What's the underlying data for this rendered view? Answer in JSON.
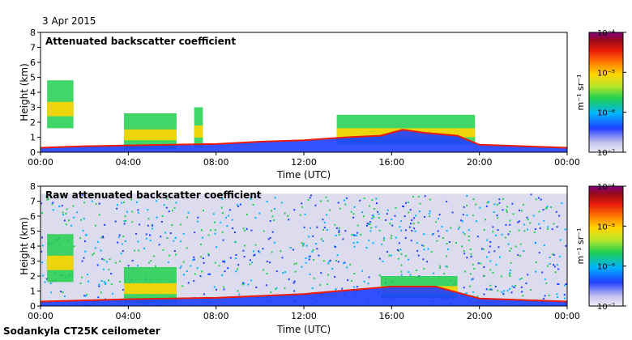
{
  "date": "3 Apr 2015",
  "caption": "Sodankyla CT25K ceilometer",
  "colorbar_unit": "m⁻¹ sr⁻¹",
  "colors": {
    "background": "#ffffff",
    "plot_background": "#ffffff",
    "raw_noise_background": "#dcdcee",
    "colormap": [
      "#f0eef8",
      "#c6c3ee",
      "#1f3fff",
      "#00b4ff",
      "#21cf4e",
      "#b8e62a",
      "#ffd500",
      "#ff7a00",
      "#e81b0c",
      "#9c0a14",
      "#7f007f"
    ]
  },
  "chart_data": [
    {
      "type": "heatmap",
      "title": "Attenuated backscatter coefficient",
      "xlabel": "Time (UTC)",
      "ylabel": "Height (km)",
      "xlim_hours": [
        0,
        24
      ],
      "ylim": [
        0,
        8
      ],
      "x_ticks": [
        "00:00",
        "04:00",
        "08:00",
        "12:00",
        "16:00",
        "20:00",
        "00:00"
      ],
      "y_ticks": [
        "0",
        "1",
        "2",
        "3",
        "4",
        "5",
        "6",
        "7",
        "8"
      ],
      "colorbar": {
        "scale": "log",
        "range": [
          1e-07,
          0.0001
        ],
        "tick_labels": [
          "10⁻⁷",
          "10⁻⁶",
          "10⁻⁵",
          "10⁻⁴"
        ]
      },
      "features": {
        "boundary_layer_top_km": [
          [
            0,
            0.3
          ],
          [
            2,
            0.4
          ],
          [
            4,
            0.45
          ],
          [
            6,
            0.5
          ],
          [
            8,
            0.55
          ],
          [
            10,
            0.7
          ],
          [
            12,
            0.8
          ],
          [
            14,
            1.0
          ],
          [
            15.5,
            1.1
          ],
          [
            16.5,
            1.5
          ],
          [
            17.5,
            1.3
          ],
          [
            19,
            1.1
          ],
          [
            20,
            0.5
          ],
          [
            22,
            0.4
          ],
          [
            24,
            0.3
          ]
        ],
        "cloud_layers": [
          {
            "t_start": 0.3,
            "t_end": 1.5,
            "base_km": 1.6,
            "top_km": 4.8
          },
          {
            "t_start": 3.8,
            "t_end": 6.2,
            "base_km": 0.2,
            "top_km": 2.6
          },
          {
            "t_start": 7.0,
            "t_end": 7.4,
            "base_km": 0.3,
            "top_km": 3.0
          },
          {
            "t_start": 13.5,
            "t_end": 19.8,
            "base_km": 0.5,
            "top_km": 2.5
          }
        ]
      }
    },
    {
      "type": "heatmap",
      "title": "Raw attenuated backscatter coefficient",
      "xlabel": "Time (UTC)",
      "ylabel": "Height (km)",
      "xlim_hours": [
        0,
        24
      ],
      "ylim": [
        0,
        8
      ],
      "x_ticks": [
        "00:00",
        "04:00",
        "08:00",
        "12:00",
        "16:00",
        "20:00",
        "00:00"
      ],
      "y_ticks": [
        "0",
        "1",
        "2",
        "3",
        "4",
        "5",
        "6",
        "7",
        "8"
      ],
      "colorbar": {
        "scale": "log",
        "range": [
          1e-07,
          0.0001
        ],
        "tick_labels": [
          "10⁻⁷",
          "10⁻⁶",
          "10⁻⁵",
          "10⁻⁴"
        ]
      },
      "features": {
        "noise_region_km": [
          0,
          7.5
        ],
        "boundary_layer_top_km": [
          [
            0,
            0.3
          ],
          [
            4,
            0.45
          ],
          [
            8,
            0.55
          ],
          [
            12,
            0.8
          ],
          [
            16,
            1.3
          ],
          [
            18,
            1.3
          ],
          [
            20,
            0.5
          ],
          [
            24,
            0.3
          ]
        ],
        "cloud_layers": [
          {
            "t_start": 0.3,
            "t_end": 1.5,
            "base_km": 1.6,
            "top_km": 4.8
          },
          {
            "t_start": 3.8,
            "t_end": 6.2,
            "base_km": 0.2,
            "top_km": 2.6
          },
          {
            "t_start": 15.5,
            "t_end": 19.0,
            "base_km": 0.5,
            "top_km": 2.0
          }
        ]
      }
    }
  ]
}
